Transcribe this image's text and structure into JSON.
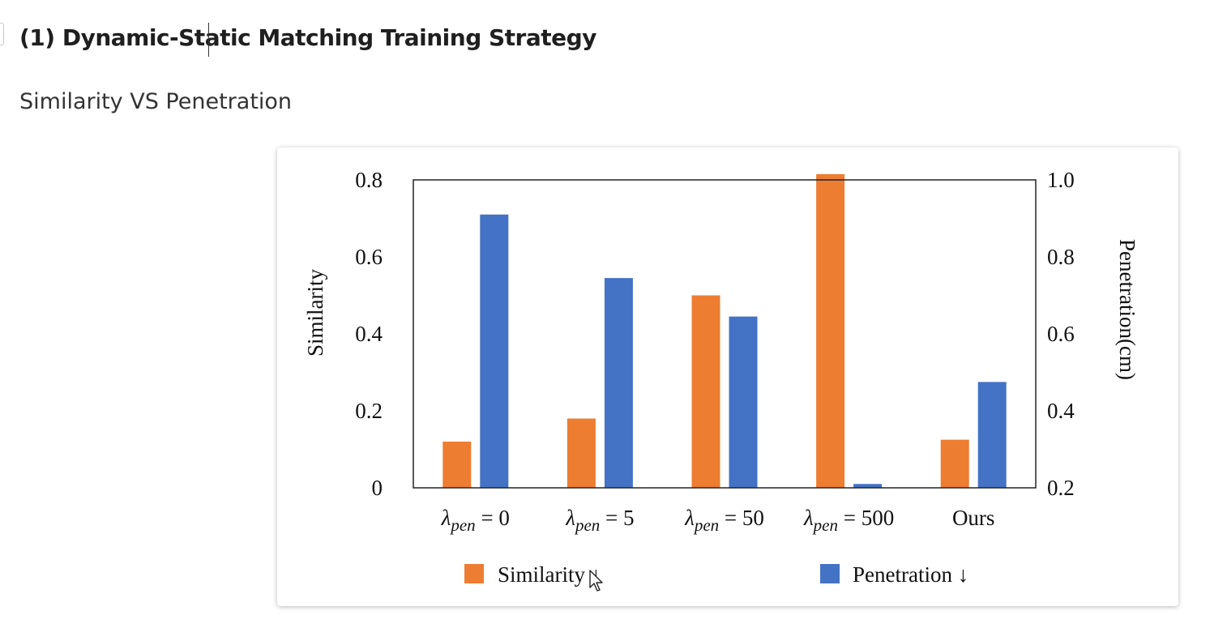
{
  "heading": "(1) Dynamic-Static Matching Training Strategy",
  "subheading": "Similarity VS Penetration",
  "colors": {
    "similarity": "#ED7D31",
    "penetration": "#4472C4"
  },
  "chart_data": {
    "type": "bar",
    "categories": [
      {
        "symbol": "λ",
        "subscript": "pen",
        "rest": " = 0"
      },
      {
        "symbol": "λ",
        "subscript": "pen",
        "rest": " = 5"
      },
      {
        "symbol": "λ",
        "subscript": "pen",
        "rest": " = 50"
      },
      {
        "symbol": "λ",
        "subscript": "pen",
        "rest": " = 500"
      },
      {
        "symbol": "",
        "subscript": "",
        "rest": "Ours"
      }
    ],
    "series": [
      {
        "name": "Similarity",
        "legend": "Similarity ↓",
        "axis": "left",
        "values": [
          0.12,
          0.18,
          0.5,
          0.815,
          0.125
        ]
      },
      {
        "name": "Penetration",
        "legend": "Penetration ↓",
        "axis": "right",
        "values": [
          0.91,
          0.745,
          0.645,
          0.21,
          0.475
        ]
      }
    ],
    "left_axis": {
      "label": "Similarity",
      "ylim": [
        0,
        0.8
      ],
      "ticks": [
        "0",
        "0.2",
        "0.4",
        "0.6",
        "0.8"
      ]
    },
    "right_axis": {
      "label": "Penetration(cm)",
      "ylim": [
        0.2,
        1.0
      ],
      "ticks": [
        "0.2",
        "0.4",
        "0.6",
        "0.8",
        "1.0"
      ]
    },
    "grid": false,
    "legend_position": "bottom"
  }
}
